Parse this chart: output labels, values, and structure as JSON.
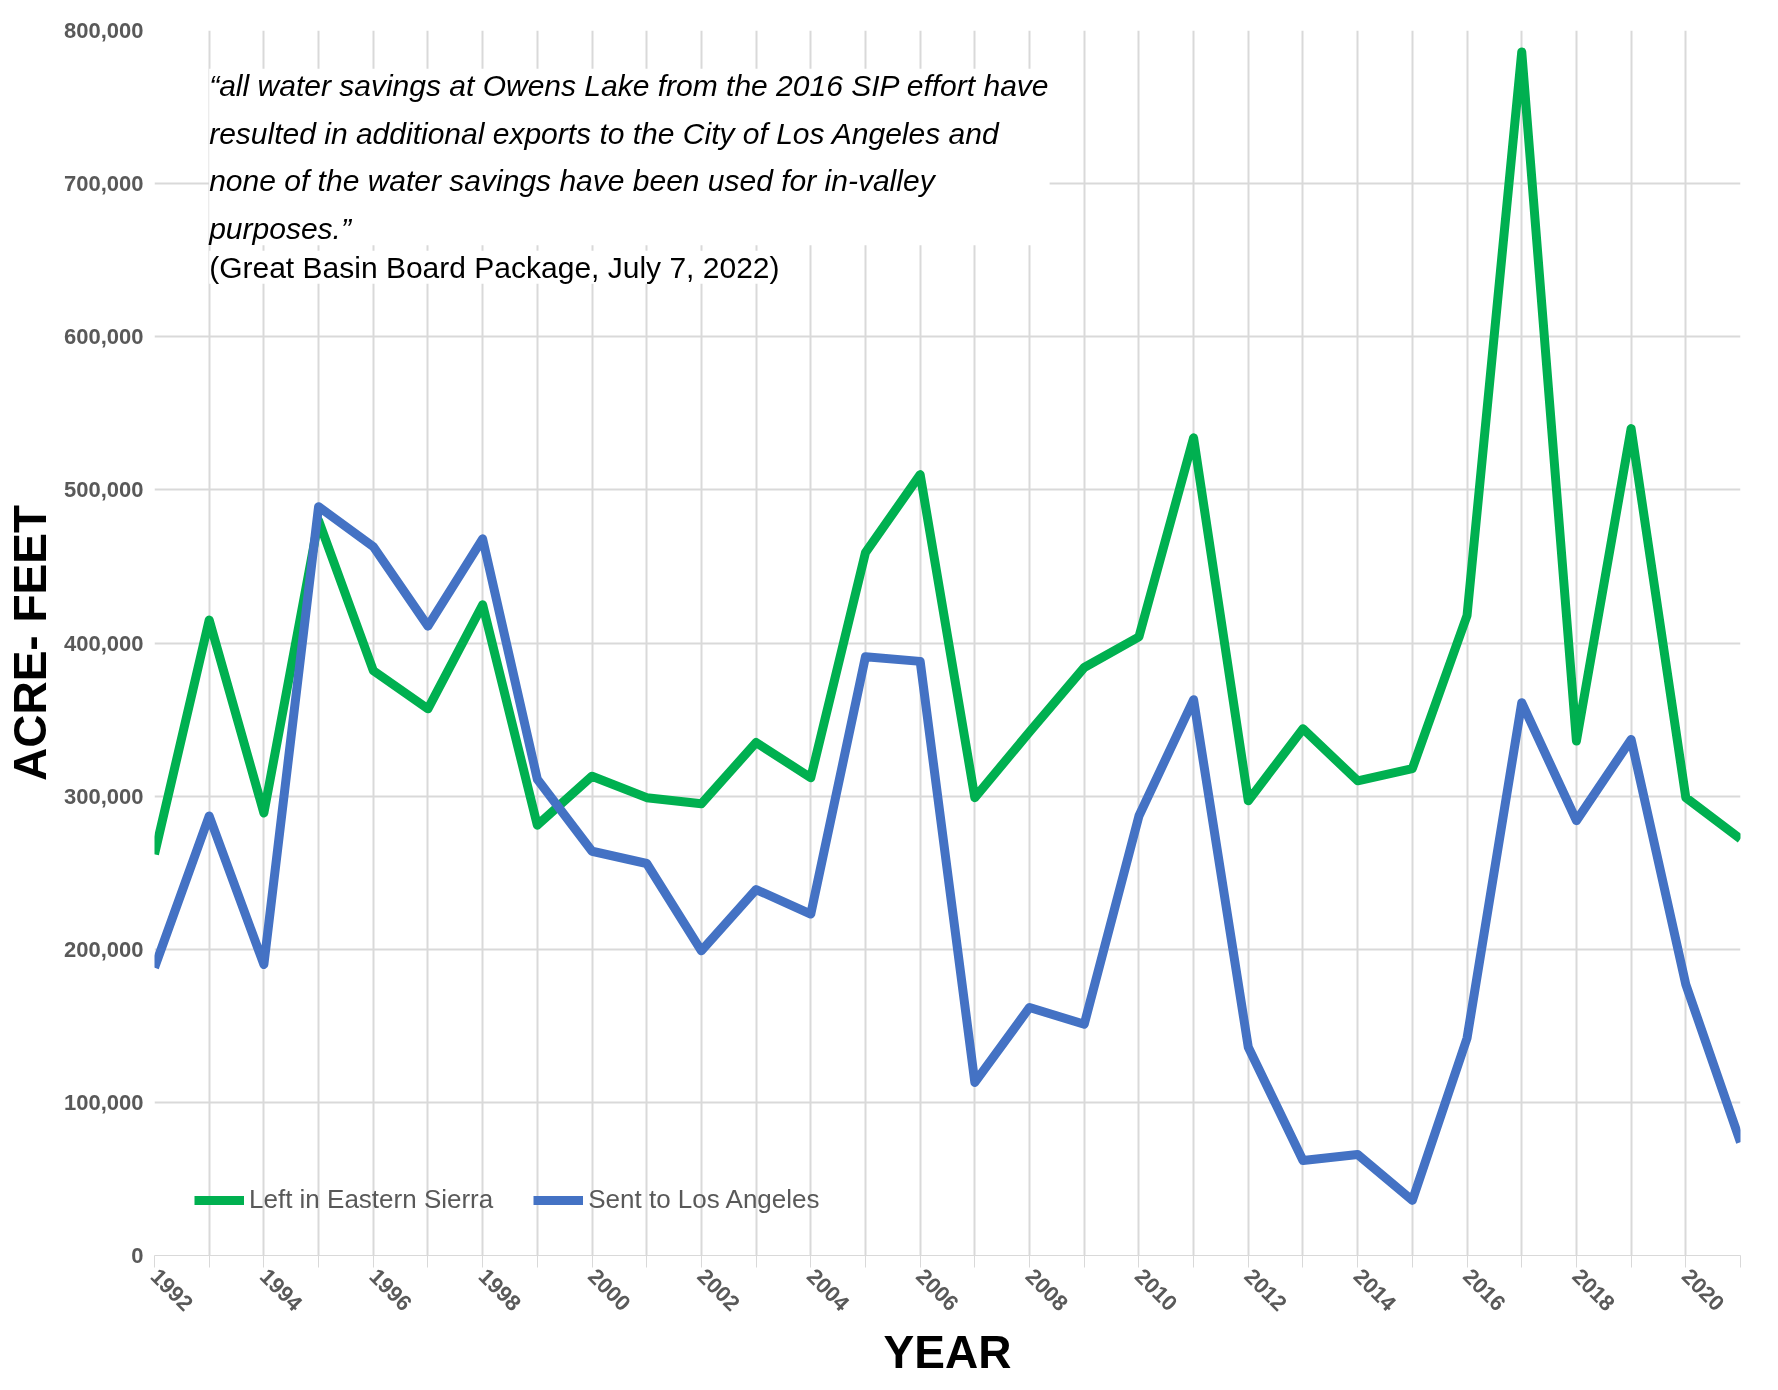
{
  "chart_data": {
    "type": "line",
    "xlabel": "YEAR",
    "ylabel": "ACRE- FEET",
    "x": [
      1992,
      1993,
      1994,
      1995,
      1996,
      1997,
      1998,
      1999,
      2000,
      2001,
      2002,
      2003,
      2004,
      2005,
      2006,
      2007,
      2008,
      2009,
      2010,
      2011,
      2012,
      2013,
      2014,
      2015,
      2016,
      2017,
      2018,
      2019,
      2020,
      2021
    ],
    "series": [
      {
        "name": "Left in Eastern Sierra",
        "color": "#00b050",
        "values": [
          262000,
          415000,
          289000,
          480000,
          382000,
          357000,
          425000,
          281000,
          313000,
          299000,
          295000,
          335000,
          312000,
          459000,
          510000,
          299000,
          342000,
          384000,
          404000,
          534000,
          297000,
          344000,
          310000,
          318000,
          418000,
          786000,
          336000,
          540000,
          299000,
          272000
        ]
      },
      {
        "name": "Sent to Los Angeles",
        "color": "#4472c4",
        "values": [
          188000,
          287000,
          190000,
          489000,
          463000,
          411000,
          468000,
          311000,
          264000,
          256000,
          199000,
          239000,
          223000,
          391000,
          388000,
          113000,
          162000,
          151000,
          287000,
          363000,
          136000,
          62000,
          66000,
          36000,
          142000,
          361000,
          284000,
          337000,
          177000,
          74000
        ]
      }
    ],
    "xlim": [
      1992,
      2021
    ],
    "xticks": [
      1992,
      {
        "value": 1993,
        "label": null
      },
      1994,
      {
        "value": 1995,
        "label": null
      },
      1996,
      {
        "value": 1997,
        "label": null
      },
      1998,
      {
        "value": 1999,
        "label": null
      },
      2000,
      {
        "value": 2001,
        "label": null
      },
      2002,
      {
        "value": 2003,
        "label": null
      },
      2004,
      {
        "value": 2005,
        "label": null
      },
      2006,
      {
        "value": 2007,
        "label": null
      },
      2008,
      {
        "value": 2009,
        "label": null
      },
      2010,
      {
        "value": 2011,
        "label": null
      },
      2012,
      {
        "value": 2013,
        "label": null
      },
      2014,
      {
        "value": 2015,
        "label": null
      },
      2016,
      {
        "value": 2017,
        "label": null
      },
      2018,
      {
        "value": 2019,
        "label": null
      },
      2020,
      {
        "value": 2021,
        "label": null
      }
    ],
    "ylim": [
      0,
      800000
    ],
    "yticks": [
      {
        "value": 0,
        "label": "0"
      },
      {
        "value": 100000,
        "label": "100,000"
      },
      {
        "value": 200000,
        "label": "200,000"
      },
      {
        "value": 300000,
        "label": "300,000"
      },
      {
        "value": 400000,
        "label": "400,000"
      },
      {
        "value": 500000,
        "label": "500,000"
      },
      {
        "value": 600000,
        "label": "600,000"
      },
      {
        "value": 700000,
        "label": "700,000"
      },
      {
        "value": 800000,
        "label": "800,000"
      }
    ],
    "grid": true,
    "legend": "bottom left",
    "marker": "none",
    "line_style": "solid",
    "annotations": [
      "“all water savings at Owens Lake from the 2016 SIP effort have resulted in additional exports to the City of Los Angeles and none of the water savings have been used for in-valley purposes.”",
      "(Great Basin Board Package, July 7, 2022)"
    ]
  }
}
